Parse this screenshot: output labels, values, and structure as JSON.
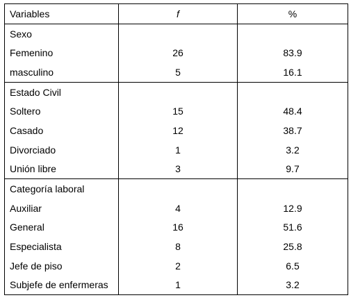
{
  "header": {
    "variables": "Variables",
    "f": "f",
    "pct": "%"
  },
  "sections": [
    {
      "title": "Sexo",
      "rows": [
        {
          "label": "Femenino",
          "f": "26",
          "pct": "83.9"
        },
        {
          "label": "masculino",
          "f": "5",
          "pct": "16.1"
        }
      ]
    },
    {
      "title": "Estado Civil",
      "rows": [
        {
          "label": "Soltero",
          "f": "15",
          "pct": "48.4"
        },
        {
          "label": "Casado",
          "f": "12",
          "pct": "38.7"
        },
        {
          "label": "Divorciado",
          "f": "1",
          "pct": "3.2"
        },
        {
          "label": "Unión libre",
          "f": "3",
          "pct": "9.7"
        }
      ]
    },
    {
      "title": "Categoría laboral",
      "rows": [
        {
          "label": "Auxiliar",
          "f": "4",
          "pct": "12.9"
        },
        {
          "label": "General",
          "f": "16",
          "pct": "51.6"
        },
        {
          "label": "Especialista",
          "f": "8",
          "pct": "25.8"
        },
        {
          "label": "Jefe de piso",
          "f": "2",
          "pct": "6.5"
        },
        {
          "label": "Subjefe de enfermeras",
          "f": "1",
          "pct": "3.2"
        }
      ]
    }
  ]
}
